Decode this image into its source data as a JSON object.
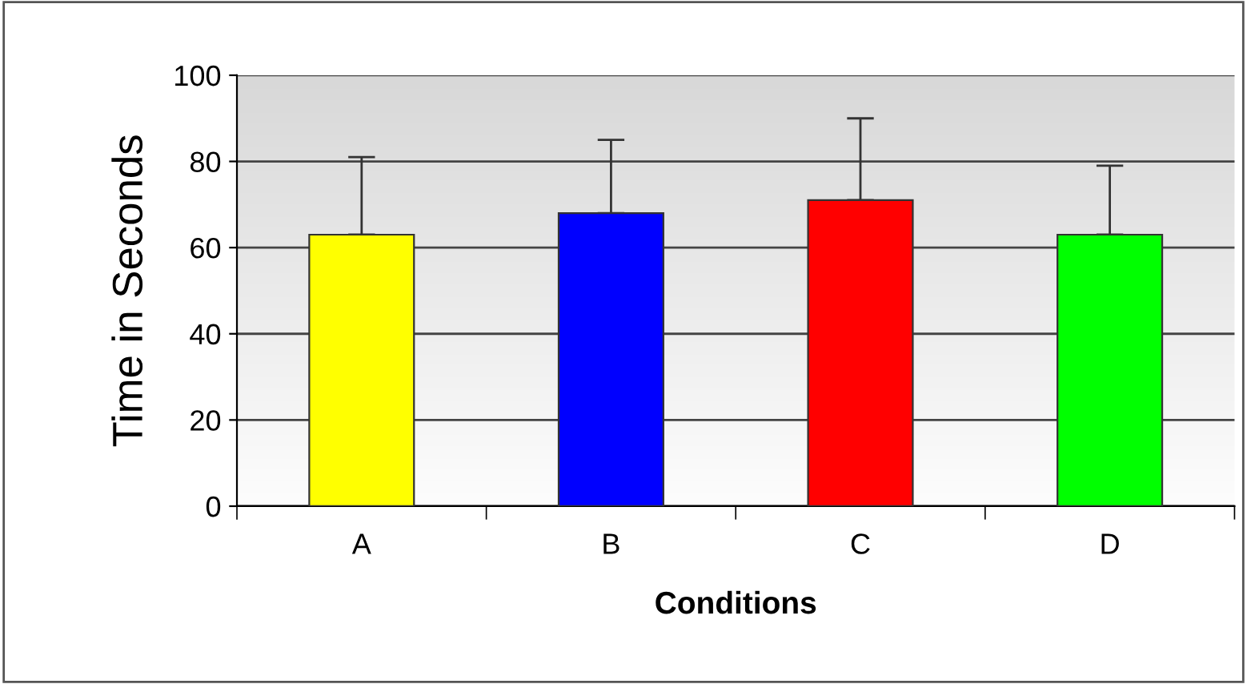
{
  "chart_data": {
    "type": "bar",
    "xlabel": "Conditions",
    "ylabel": "Time in Seconds",
    "categories": [
      "A",
      "B",
      "C",
      "D"
    ],
    "values": [
      63,
      68,
      71,
      63
    ],
    "colors": [
      "#ffff00",
      "#0000ff",
      "#ff0000",
      "#00ff00"
    ],
    "errors": [
      [
        63,
        81
      ],
      [
        68,
        85
      ],
      [
        71,
        90
      ],
      [
        63,
        79
      ]
    ],
    "ylim": [
      0,
      100
    ],
    "yticks": [
      0,
      20,
      40,
      60,
      80,
      100
    ],
    "grid": "y"
  }
}
